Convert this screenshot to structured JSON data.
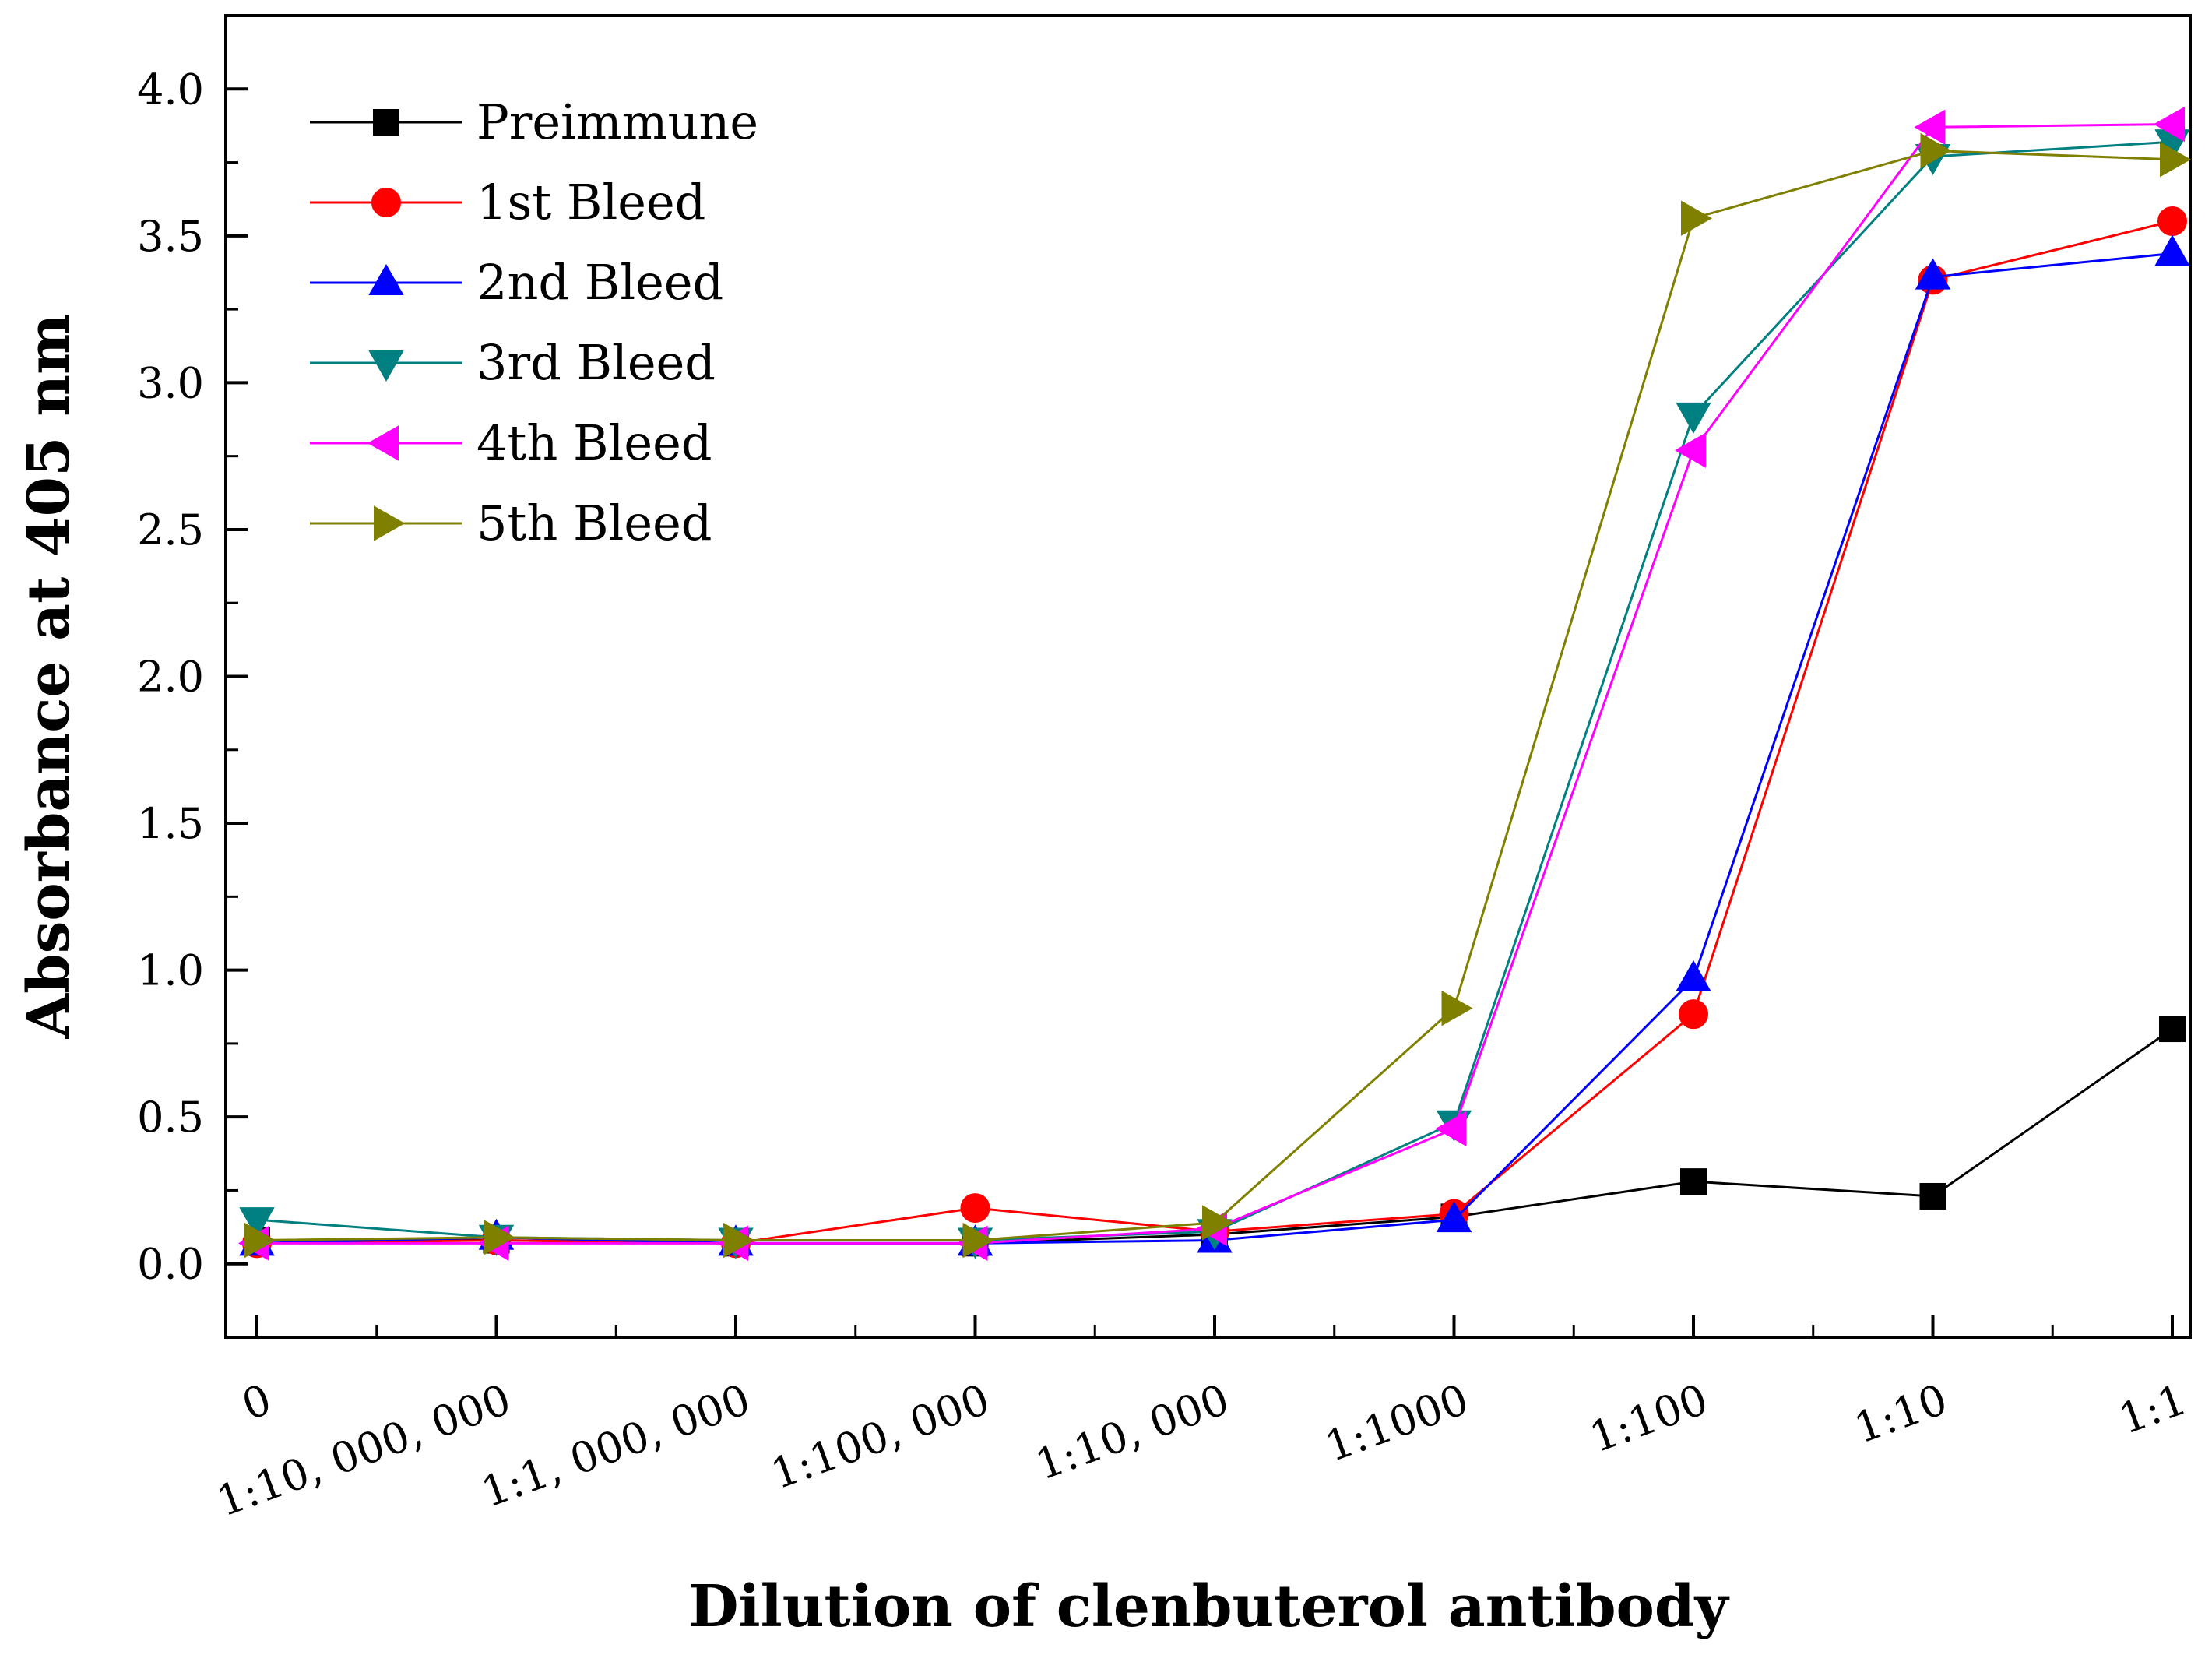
{
  "chart_data": {
    "type": "line",
    "title": "",
    "xlabel": "Dilution of clenbuterol antibody",
    "ylabel": "Absorbance at 405 nm",
    "categories": [
      "0",
      "1:10, 000, 000",
      "1:1, 000, 000",
      "1:100, 000",
      "1:10, 000",
      "1:1000",
      "1:100",
      "1:10",
      "1:1"
    ],
    "ylim": [
      -0.25,
      4.25
    ],
    "yticks": [
      "0.0",
      "0.5",
      "1.0",
      "1.5",
      "2.0",
      "2.5",
      "3.0",
      "3.5",
      "4.0"
    ],
    "legend_position": "top-left",
    "grid": false,
    "series": [
      {
        "name": "Preimmune",
        "color": "#000000",
        "marker": "square",
        "values": [
          0.08,
          0.08,
          0.07,
          0.07,
          0.1,
          0.16,
          0.28,
          0.23,
          0.8
        ]
      },
      {
        "name": "1st Bleed",
        "color": "#ff0000",
        "marker": "circle",
        "values": [
          0.07,
          0.08,
          0.07,
          0.19,
          0.11,
          0.17,
          0.85,
          3.35,
          3.55
        ]
      },
      {
        "name": "2nd Bleed",
        "color": "#0000ff",
        "marker": "triangle-up",
        "values": [
          0.07,
          0.09,
          0.07,
          0.07,
          0.08,
          0.15,
          0.97,
          3.36,
          3.44
        ]
      },
      {
        "name": "3rd Bleed",
        "color": "#008080",
        "marker": "triangle-down",
        "values": [
          0.15,
          0.09,
          0.08,
          0.08,
          0.11,
          0.48,
          2.89,
          3.77,
          3.82
        ]
      },
      {
        "name": "4th Bleed",
        "color": "#ff00ff",
        "marker": "triangle-left",
        "values": [
          0.07,
          0.07,
          0.07,
          0.07,
          0.12,
          0.46,
          2.77,
          3.87,
          3.88
        ]
      },
      {
        "name": "5th Bleed",
        "color": "#808000",
        "marker": "triangle-right",
        "values": [
          0.08,
          0.09,
          0.08,
          0.08,
          0.14,
          0.87,
          3.56,
          3.79,
          3.76
        ]
      }
    ]
  }
}
